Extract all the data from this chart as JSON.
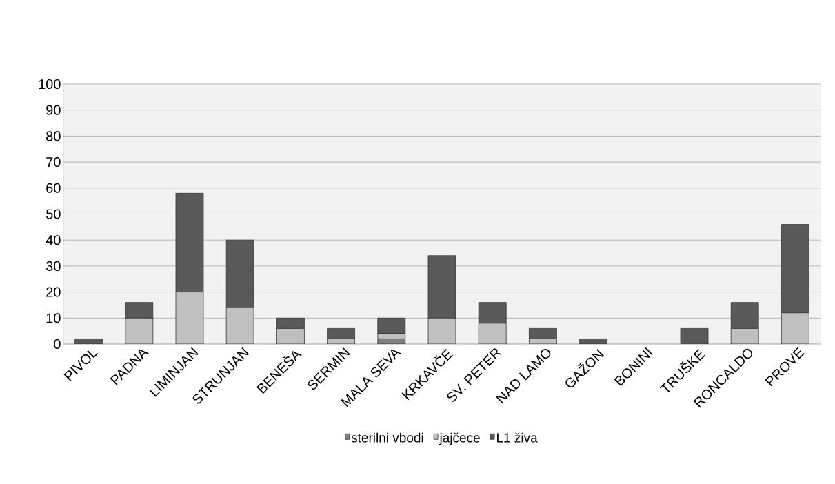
{
  "chart_data": {
    "type": "bar",
    "stacked": true,
    "categories": [
      "PIVOL",
      "PADNA",
      "LIMINJAN",
      "STRUNJAN",
      "BENEŠA",
      "SERMIN",
      "MALA SEVA",
      "KRKAVČE",
      "SV. PETER",
      "NAD LAMO",
      "GAŽON",
      "BONINI",
      "TRUŠKE",
      "RONCALDO",
      "PROVE"
    ],
    "series": [
      {
        "name": "sterilni vbodi",
        "color": "#7f7f7f",
        "values": [
          0,
          0,
          0,
          0,
          0,
          0,
          2,
          0,
          0,
          0,
          0,
          0,
          0,
          0,
          0
        ]
      },
      {
        "name": "jajčece",
        "color": "#c0c0c0",
        "values": [
          0,
          10,
          20,
          14,
          6,
          2,
          2,
          10,
          8,
          2,
          0,
          0,
          0,
          6,
          12
        ]
      },
      {
        "name": "L1 živa",
        "color": "#595959",
        "values": [
          2,
          6,
          38,
          26,
          4,
          4,
          6,
          24,
          8,
          4,
          2,
          0,
          6,
          10,
          34
        ]
      }
    ],
    "ylim": [
      0,
      100
    ],
    "yticks": [
      0,
      10,
      20,
      30,
      40,
      50,
      60,
      70,
      80,
      90,
      100
    ],
    "grid": "y",
    "legend": "bottom"
  }
}
